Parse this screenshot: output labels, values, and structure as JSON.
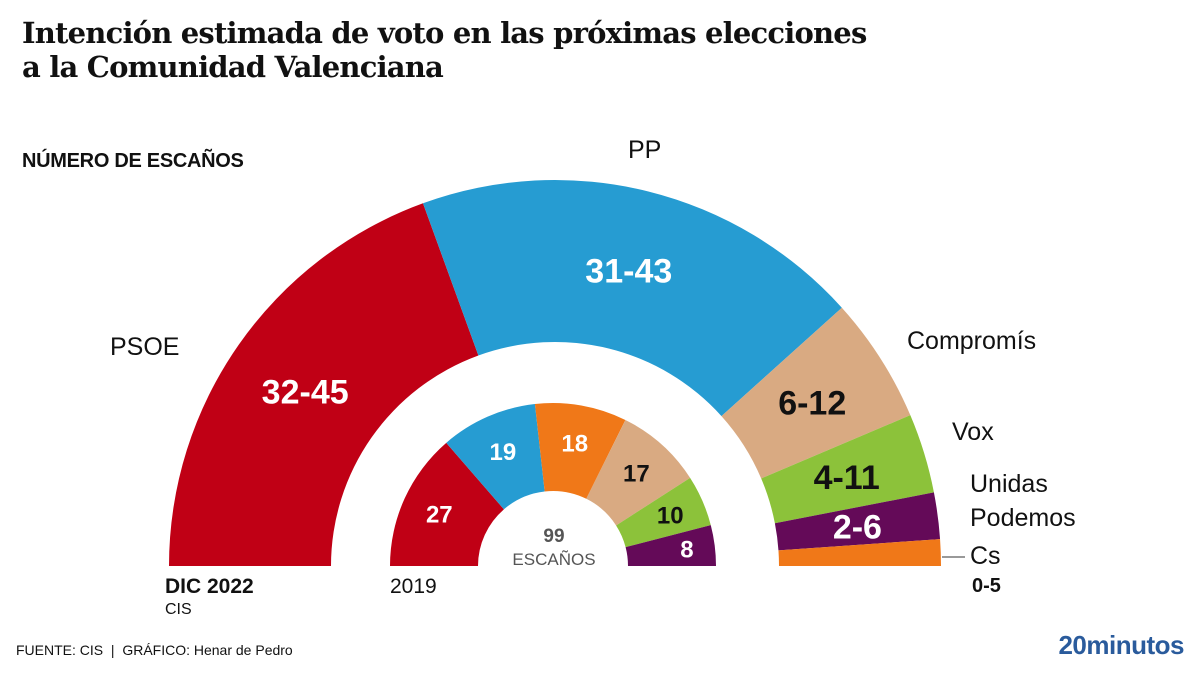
{
  "header": {
    "title_line1": "Intención estimada de voto en las próximas elecciones",
    "title_line2": "a la Comunidad Valenciana",
    "subtitle": "NÚMERO DE ESCAÑOS"
  },
  "chart_data": [
    {
      "type": "pie",
      "subtype": "parliament-half-donut",
      "name": "DIC 2022",
      "caption": "DIC 2022",
      "caption_sub": "CIS",
      "unit": "seats (range)",
      "series": [
        {
          "party": "PSOE",
          "range": "32-45",
          "min": 32,
          "max": 45,
          "share_deg": 70,
          "color": "#c00015",
          "text_color": "#ffffff"
        },
        {
          "party": "PP",
          "range": "31-43",
          "min": 31,
          "max": 43,
          "share_deg": 68,
          "color": "#269cd2",
          "text_color": "#ffffff"
        },
        {
          "party": "Compromís",
          "range": "6-12",
          "min": 6,
          "max": 12,
          "share_deg": 19,
          "color": "#d9aa82",
          "text_color": "#111111"
        },
        {
          "party": "Vox",
          "range": "4-11",
          "min": 4,
          "max": 11,
          "share_deg": 12,
          "color": "#8cc23a",
          "text_color": "#111111"
        },
        {
          "party": "Unidas Podemos",
          "range": "2-6",
          "min": 2,
          "max": 6,
          "share_deg": 7,
          "color": "#640a58",
          "text_color": "#ffffff"
        },
        {
          "party": "Cs",
          "range": "0-5",
          "min": 0,
          "max": 5,
          "share_deg": 4,
          "color": "#f07818",
          "text_color": "#111111"
        }
      ]
    },
    {
      "type": "pie",
      "subtype": "parliament-half-donut",
      "name": "2019",
      "caption": "2019",
      "total_seats": 99,
      "center_value": "99",
      "center_label": "ESCAÑOS",
      "series": [
        {
          "party": "PSOE",
          "value": 27,
          "color": "#c00015",
          "text_color": "#ffffff"
        },
        {
          "party": "PP",
          "value": 19,
          "color": "#269cd2",
          "text_color": "#ffffff"
        },
        {
          "party": "Cs",
          "value": 18,
          "color": "#f07818",
          "text_color": "#ffffff"
        },
        {
          "party": "Compromís",
          "value": 17,
          "color": "#d9aa82",
          "text_color": "#111111"
        },
        {
          "party": "Vox",
          "value": 10,
          "color": "#8cc23a",
          "text_color": "#111111"
        },
        {
          "party": "Unidas Podemos",
          "value": 8,
          "color": "#640a58",
          "text_color": "#ffffff"
        }
      ]
    }
  ],
  "party_labels": {
    "psoe": "PSOE",
    "pp": "PP",
    "compromis": "Compromís",
    "vox": "Vox",
    "podemos_1": "Unidas",
    "podemos_2": "Podemos",
    "cs": "Cs",
    "cs_range": "0-5"
  },
  "footer": {
    "source": "FUENTE: CIS  |  GRÁFICO: Henar de Pedro",
    "logo": "20minutos"
  }
}
